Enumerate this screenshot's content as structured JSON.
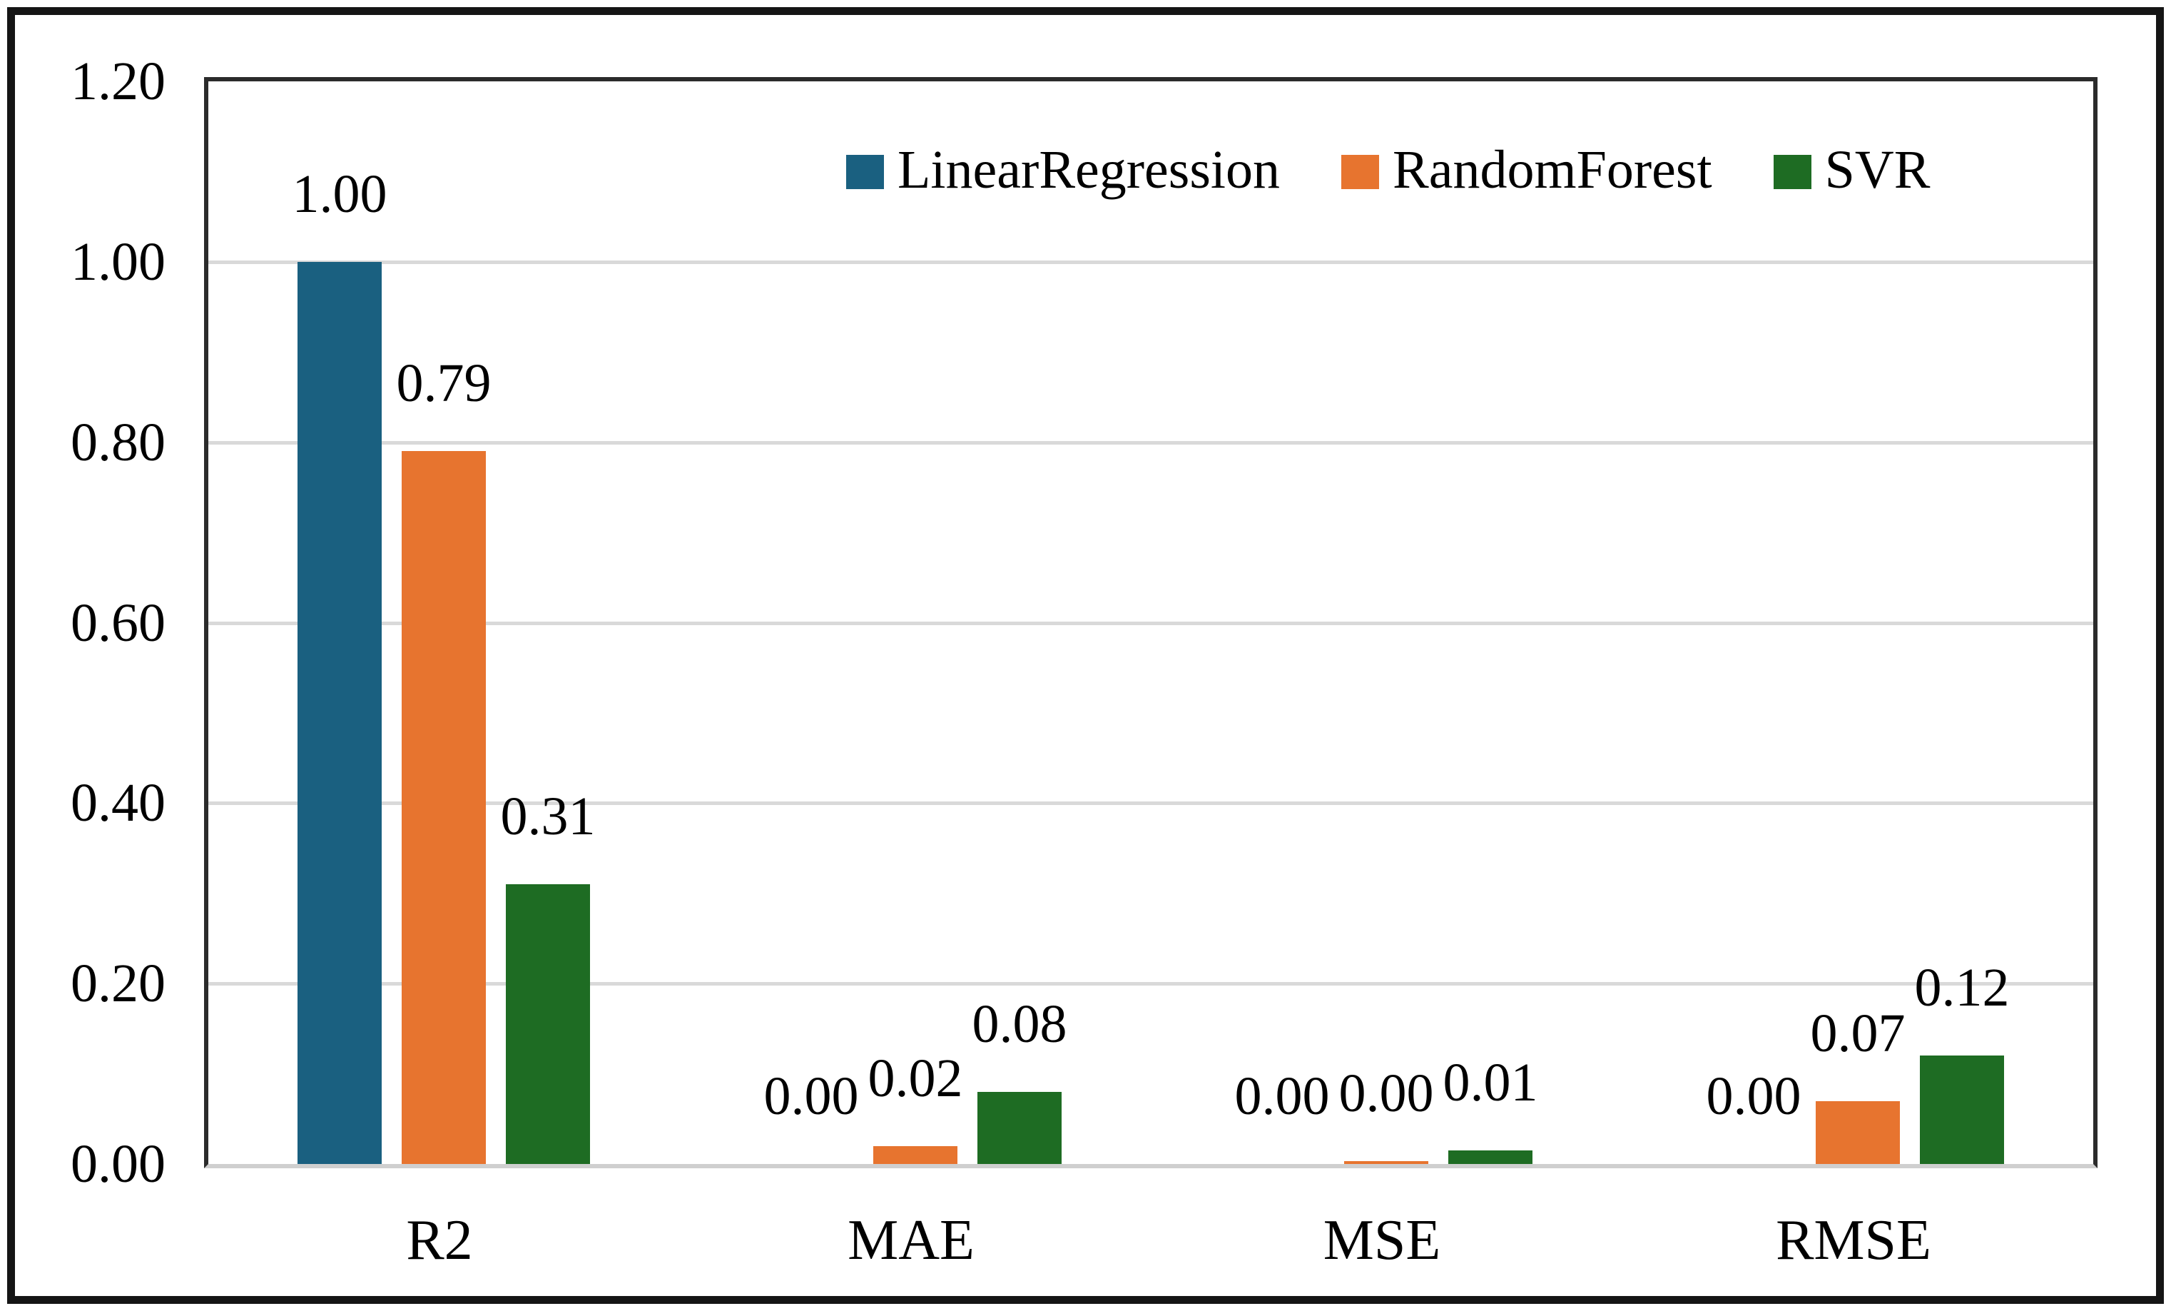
{
  "figure": {
    "background": "#ffffff",
    "outer_border_color": "#151515",
    "plot_border_color": "#2b2b2b",
    "baseline_color": "#cfcfcf",
    "gridline_color": "#d9d9d9",
    "text_color": "#000000"
  },
  "chart_data": {
    "type": "bar",
    "title": "",
    "xlabel": "",
    "ylabel": "",
    "categories": [
      "R2",
      "MAE",
      "MSE",
      "RMSE"
    ],
    "series": [
      {
        "name": "LinearRegression",
        "color": "#1a6080",
        "values": [
          1.0,
          0.0,
          0.0,
          0.0
        ],
        "value_labels": [
          "1.00",
          "0.00",
          "0.00",
          "0.00"
        ]
      },
      {
        "name": "RandomForest",
        "color": "#e7742f",
        "values": [
          0.79,
          0.02,
          0.003,
          0.07
        ],
        "value_labels": [
          "0.79",
          "0.02",
          "0.00",
          "0.07"
        ]
      },
      {
        "name": "SVR",
        "color": "#1e6c23",
        "values": [
          0.31,
          0.08,
          0.015,
          0.12
        ],
        "value_labels": [
          "0.31",
          "0.08",
          "0.01",
          "0.12"
        ]
      }
    ],
    "ylim": [
      0.0,
      1.2
    ],
    "y_ticks": [
      "0.00",
      "0.20",
      "0.40",
      "0.60",
      "0.80",
      "1.00",
      "1.20"
    ],
    "grid": "horizontal",
    "legend_position": "top-inside-right"
  }
}
